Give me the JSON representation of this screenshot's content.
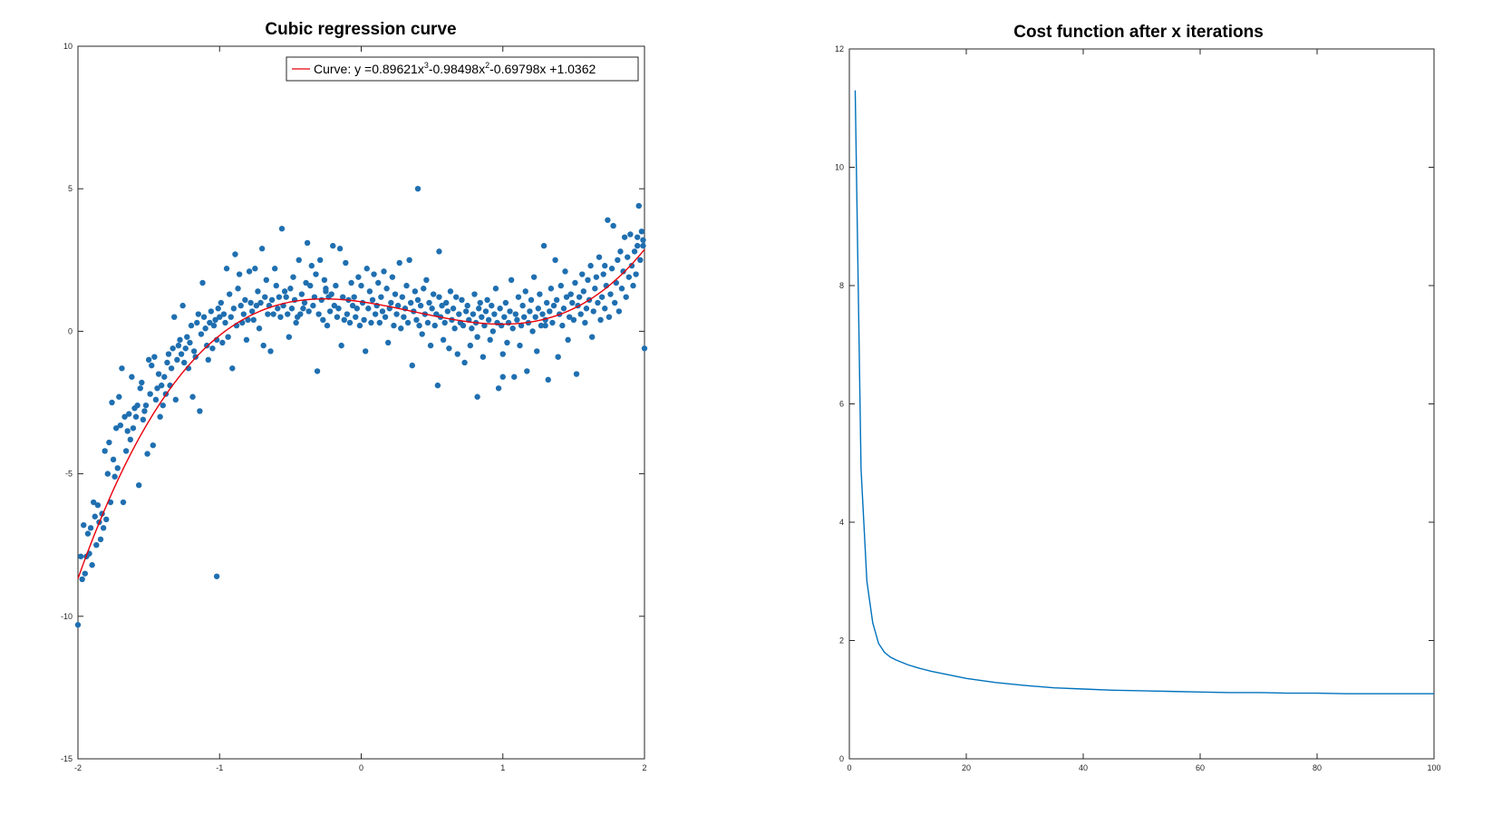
{
  "chart_data": [
    {
      "type": "scatter",
      "title": "Cubic regression curve",
      "xlabel": "",
      "ylabel": "",
      "xlim": [
        -2,
        2
      ],
      "ylim": [
        -15,
        10
      ],
      "xticks": [
        -2,
        -1,
        0,
        1,
        2
      ],
      "yticks": [
        -15,
        -10,
        -5,
        0,
        5,
        10
      ],
      "grid": false,
      "legend_position": "top-right",
      "legend": {
        "prefix": "Curve: y =",
        "c3": "0.89621",
        "x3": "x",
        "exp3": "3",
        "c2": "-0.98498",
        "x2": "x",
        "exp2": "2",
        "c1": "-0.69798x +1.0362"
      },
      "marker_color": "#1f6fb0",
      "fit_color": "#e8000b",
      "fit_coefficients": [
        0.89621,
        -0.98498,
        -0.69798,
        1.0362
      ],
      "scatter": {
        "x": [
          -2.0,
          -1.98,
          -1.97,
          -1.96,
          -1.95,
          -1.94,
          -1.93,
          -1.92,
          -1.91,
          -1.9,
          -1.89,
          -1.88,
          -1.87,
          -1.86,
          -1.85,
          -1.84,
          -1.83,
          -1.82,
          -1.81,
          -1.8,
          -1.79,
          -1.78,
          -1.77,
          -1.76,
          -1.75,
          -1.74,
          -1.73,
          -1.72,
          -1.71,
          -1.7,
          -1.69,
          -1.68,
          -1.67,
          -1.66,
          -1.65,
          -1.64,
          -1.63,
          -1.62,
          -1.61,
          -1.6,
          -1.59,
          -1.58,
          -1.57,
          -1.56,
          -1.55,
          -1.54,
          -1.53,
          -1.52,
          -1.51,
          -1.5,
          -1.49,
          -1.48,
          -1.47,
          -1.46,
          -1.45,
          -1.44,
          -1.43,
          -1.42,
          -1.41,
          -1.4,
          -1.39,
          -1.38,
          -1.37,
          -1.36,
          -1.35,
          -1.34,
          -1.33,
          -1.32,
          -1.31,
          -1.3,
          -1.29,
          -1.28,
          -1.27,
          -1.26,
          -1.25,
          -1.24,
          -1.23,
          -1.22,
          -1.21,
          -1.2,
          -1.19,
          -1.18,
          -1.17,
          -1.16,
          -1.15,
          -1.14,
          -1.13,
          -1.12,
          -1.11,
          -1.1,
          -1.09,
          -1.08,
          -1.07,
          -1.06,
          -1.05,
          -1.04,
          -1.03,
          -1.02,
          -1.01,
          -1.0,
          -0.99,
          -0.98,
          -0.97,
          -0.96,
          -0.95,
          -0.94,
          -0.93,
          -0.92,
          -0.91,
          -0.9,
          -0.89,
          -0.88,
          -0.87,
          -0.86,
          -0.85,
          -0.84,
          -0.83,
          -0.82,
          -0.81,
          -0.8,
          -0.79,
          -0.78,
          -0.77,
          -0.76,
          -0.75,
          -0.74,
          -0.73,
          -0.72,
          -0.71,
          -0.7,
          -0.69,
          -0.68,
          -0.67,
          -0.66,
          -0.65,
          -0.64,
          -0.63,
          -0.62,
          -0.61,
          -0.6,
          -0.59,
          -0.58,
          -0.57,
          -0.56,
          -0.55,
          -0.54,
          -0.53,
          -0.52,
          -0.51,
          -0.5,
          -0.49,
          -0.48,
          -0.47,
          -0.46,
          -0.45,
          -0.44,
          -0.43,
          -0.42,
          -0.41,
          -0.4,
          -0.39,
          -0.38,
          -0.37,
          -0.36,
          -0.35,
          -0.34,
          -0.33,
          -0.32,
          -0.31,
          -0.3,
          -0.29,
          -0.28,
          -0.27,
          -0.26,
          -0.25,
          -0.24,
          -0.23,
          -0.22,
          -0.21,
          -0.2,
          -0.19,
          -0.18,
          -0.17,
          -0.16,
          -0.15,
          -0.14,
          -0.13,
          -0.12,
          -0.11,
          -0.1,
          -0.09,
          -0.08,
          -0.07,
          -0.06,
          -0.05,
          -0.04,
          -0.03,
          -0.02,
          -0.01,
          0.0,
          0.01,
          0.02,
          0.03,
          0.04,
          0.05,
          0.06,
          0.07,
          0.08,
          0.09,
          0.1,
          0.11,
          0.12,
          0.13,
          0.14,
          0.15,
          0.16,
          0.17,
          0.18,
          0.19,
          0.2,
          0.21,
          0.22,
          0.23,
          0.24,
          0.25,
          0.26,
          0.27,
          0.28,
          0.29,
          0.3,
          0.31,
          0.32,
          0.33,
          0.34,
          0.35,
          0.36,
          0.37,
          0.38,
          0.39,
          0.4,
          0.41,
          0.42,
          0.43,
          0.44,
          0.45,
          0.46,
          0.47,
          0.48,
          0.49,
          0.5,
          0.51,
          0.52,
          0.53,
          0.54,
          0.55,
          0.56,
          0.57,
          0.58,
          0.59,
          0.6,
          0.61,
          0.62,
          0.63,
          0.64,
          0.65,
          0.66,
          0.67,
          0.68,
          0.69,
          0.7,
          0.71,
          0.72,
          0.73,
          0.74,
          0.75,
          0.76,
          0.77,
          0.78,
          0.79,
          0.8,
          0.81,
          0.82,
          0.83,
          0.84,
          0.85,
          0.86,
          0.87,
          0.88,
          0.89,
          0.9,
          0.91,
          0.92,
          0.93,
          0.94,
          0.95,
          0.96,
          0.97,
          0.98,
          0.99,
          1.0,
          1.01,
          1.02,
          1.03,
          1.04,
          1.05,
          1.06,
          1.07,
          1.08,
          1.09,
          1.1,
          1.11,
          1.12,
          1.13,
          1.14,
          1.15,
          1.16,
          1.17,
          1.18,
          1.19,
          1.2,
          1.21,
          1.22,
          1.23,
          1.24,
          1.25,
          1.26,
          1.27,
          1.28,
          1.29,
          1.3,
          1.31,
          1.32,
          1.33,
          1.34,
          1.35,
          1.36,
          1.37,
          1.38,
          1.39,
          1.4,
          1.41,
          1.42,
          1.43,
          1.44,
          1.45,
          1.46,
          1.47,
          1.48,
          1.49,
          1.5,
          1.51,
          1.52,
          1.53,
          1.54,
          1.55,
          1.56,
          1.57,
          1.58,
          1.59,
          1.6,
          1.61,
          1.62,
          1.63,
          1.64,
          1.65,
          1.66,
          1.67,
          1.68,
          1.69,
          1.7,
          1.71,
          1.72,
          1.73,
          1.74,
          1.75,
          1.76,
          1.77,
          1.78,
          1.79,
          1.8,
          1.81,
          1.82,
          1.83,
          1.84,
          1.85,
          1.86,
          1.87,
          1.88,
          1.89,
          1.9,
          1.91,
          1.92,
          1.93,
          1.94,
          1.95,
          1.96,
          1.97,
          1.98,
          1.99,
          2.0,
          -0.25,
          0.4,
          -1.02,
          0.55,
          0.82,
          1.0,
          1.3,
          1.72,
          1.95,
          1.99
        ],
        "y": [
          -10.3,
          -7.9,
          -8.7,
          -6.8,
          -8.5,
          -7.9,
          -7.1,
          -7.8,
          -6.9,
          -8.2,
          -6.0,
          -6.5,
          -7.5,
          -6.1,
          -6.7,
          -7.3,
          -6.4,
          -6.9,
          -4.2,
          -6.6,
          -5.0,
          -3.9,
          -6.0,
          -2.5,
          -4.5,
          -5.1,
          -3.4,
          -4.8,
          -2.3,
          -3.3,
          -1.3,
          -6.0,
          -3.0,
          -4.2,
          -3.5,
          -2.9,
          -3.8,
          -1.6,
          -3.4,
          -2.7,
          -3.0,
          -2.6,
          -5.4,
          -2.0,
          -1.8,
          -3.1,
          -2.8,
          -2.6,
          -4.3,
          -1.0,
          -2.2,
          -1.2,
          -4.0,
          -0.9,
          -2.4,
          -2.0,
          -1.5,
          -3.0,
          -1.9,
          -2.6,
          -1.6,
          -2.2,
          -1.1,
          -0.8,
          -1.9,
          -1.3,
          -0.6,
          0.5,
          -2.4,
          -1.0,
          -0.5,
          -0.3,
          -0.8,
          0.9,
          -1.1,
          -0.6,
          -0.2,
          -1.3,
          -0.4,
          0.2,
          -2.3,
          -0.7,
          -0.9,
          0.3,
          0.6,
          -2.8,
          -0.1,
          1.7,
          0.5,
          0.1,
          -0.5,
          -1.0,
          0.3,
          0.7,
          -0.6,
          0.2,
          0.4,
          -0.3,
          0.8,
          0.5,
          1.0,
          -0.4,
          0.6,
          0.3,
          2.2,
          -0.2,
          1.3,
          0.5,
          -1.3,
          0.8,
          2.7,
          0.2,
          1.5,
          2.0,
          0.9,
          0.3,
          0.6,
          1.1,
          -0.3,
          0.4,
          2.1,
          1.0,
          0.7,
          0.4,
          2.2,
          0.9,
          1.4,
          0.1,
          1.0,
          2.9,
          -0.5,
          1.2,
          1.8,
          0.6,
          0.9,
          -0.7,
          1.1,
          0.6,
          2.2,
          1.6,
          0.8,
          1.2,
          0.5,
          3.6,
          0.9,
          1.4,
          1.2,
          0.6,
          -0.2,
          1.5,
          0.8,
          1.9,
          1.1,
          0.3,
          0.5,
          2.5,
          0.6,
          1.3,
          0.8,
          1.0,
          1.7,
          3.1,
          0.7,
          1.6,
          2.3,
          0.9,
          1.2,
          2.0,
          -1.4,
          0.6,
          2.5,
          1.1,
          0.4,
          1.8,
          1.5,
          0.2,
          1.2,
          0.7,
          1.3,
          3.0,
          0.9,
          1.6,
          0.5,
          0.8,
          2.9,
          -0.5,
          1.2,
          0.4,
          2.4,
          0.6,
          1.1,
          0.3,
          1.7,
          0.9,
          1.2,
          0.5,
          0.8,
          1.9,
          0.2,
          1.6,
          1.0,
          0.4,
          -0.7,
          2.2,
          0.8,
          1.4,
          0.3,
          1.1,
          2.0,
          0.6,
          0.9,
          1.7,
          0.3,
          1.2,
          0.7,
          2.1,
          0.5,
          1.5,
          -0.4,
          0.8,
          1.0,
          1.9,
          0.2,
          1.3,
          0.6,
          0.9,
          2.4,
          0.1,
          1.2,
          0.5,
          0.8,
          1.6,
          0.3,
          2.5,
          1.0,
          -1.2,
          0.7,
          1.4,
          0.4,
          1.1,
          0.2,
          0.9,
          -0.1,
          1.5,
          0.6,
          1.8,
          0.3,
          1.0,
          -0.5,
          0.8,
          1.3,
          0.2,
          0.6,
          -1.9,
          1.2,
          0.5,
          0.9,
          -0.3,
          0.3,
          1.0,
          0.7,
          -0.6,
          1.4,
          0.4,
          0.8,
          0.1,
          1.2,
          -0.8,
          0.6,
          0.3,
          1.1,
          0.2,
          -1.1,
          0.7,
          0.9,
          0.4,
          -0.5,
          0.1,
          0.6,
          1.3,
          0.3,
          -0.2,
          0.8,
          1.0,
          0.5,
          -0.9,
          0.2,
          0.7,
          1.1,
          0.4,
          -0.3,
          0.9,
          0.0,
          0.6,
          1.5,
          0.3,
          -2.0,
          0.8,
          0.2,
          -0.8,
          0.5,
          1.0,
          -0.4,
          0.3,
          0.7,
          1.8,
          0.1,
          -1.6,
          0.6,
          0.4,
          1.2,
          -0.5,
          0.2,
          0.9,
          0.5,
          1.4,
          -1.4,
          0.3,
          0.7,
          1.1,
          0.0,
          1.9,
          0.5,
          -0.7,
          0.8,
          1.3,
          0.2,
          0.6,
          3.0,
          0.4,
          1.0,
          -1.7,
          0.7,
          1.5,
          0.3,
          0.9,
          2.5,
          1.1,
          -0.9,
          0.6,
          1.6,
          0.2,
          0.8,
          2.1,
          1.2,
          -0.3,
          0.5,
          1.3,
          1.0,
          0.4,
          1.7,
          -1.5,
          0.9,
          1.2,
          0.6,
          2.0,
          1.4,
          0.3,
          0.8,
          1.8,
          1.1,
          2.3,
          -0.2,
          0.7,
          1.5,
          1.9,
          1.0,
          2.6,
          0.4,
          1.2,
          2.0,
          0.8,
          1.6,
          3.9,
          0.5,
          1.3,
          2.2,
          3.7,
          1.0,
          1.7,
          2.5,
          0.7,
          2.8,
          1.5,
          2.1,
          3.3,
          1.2,
          2.6,
          1.9,
          3.4,
          2.3,
          1.6,
          2.8,
          2.0,
          3.0,
          4.4,
          2.5,
          3.5,
          3.2,
          -0.6,
          1.4,
          5.0,
          -8.6,
          2.8,
          -2.3,
          -1.6,
          0.2,
          2.3,
          3.3,
          3.0
        ]
      }
    },
    {
      "type": "line",
      "title": "Cost function after x iterations",
      "xlabel": "",
      "ylabel": "",
      "xlim": [
        0,
        100
      ],
      "ylim": [
        0,
        12
      ],
      "xticks": [
        0,
        20,
        40,
        60,
        80,
        100
      ],
      "yticks": [
        0,
        2,
        4,
        6,
        8,
        10,
        12
      ],
      "grid": false,
      "line_color": "#0072bd",
      "x": [
        1,
        2,
        3,
        4,
        5,
        6,
        7,
        8,
        9,
        10,
        12,
        14,
        16,
        18,
        20,
        25,
        30,
        35,
        40,
        45,
        50,
        55,
        60,
        65,
        70,
        75,
        80,
        85,
        90,
        95,
        100
      ],
      "y": [
        11.3,
        4.9,
        3.0,
        2.3,
        1.95,
        1.8,
        1.72,
        1.67,
        1.63,
        1.59,
        1.53,
        1.48,
        1.44,
        1.4,
        1.36,
        1.29,
        1.24,
        1.2,
        1.18,
        1.16,
        1.15,
        1.14,
        1.13,
        1.12,
        1.12,
        1.11,
        1.11,
        1.1,
        1.1,
        1.1,
        1.1
      ]
    }
  ]
}
